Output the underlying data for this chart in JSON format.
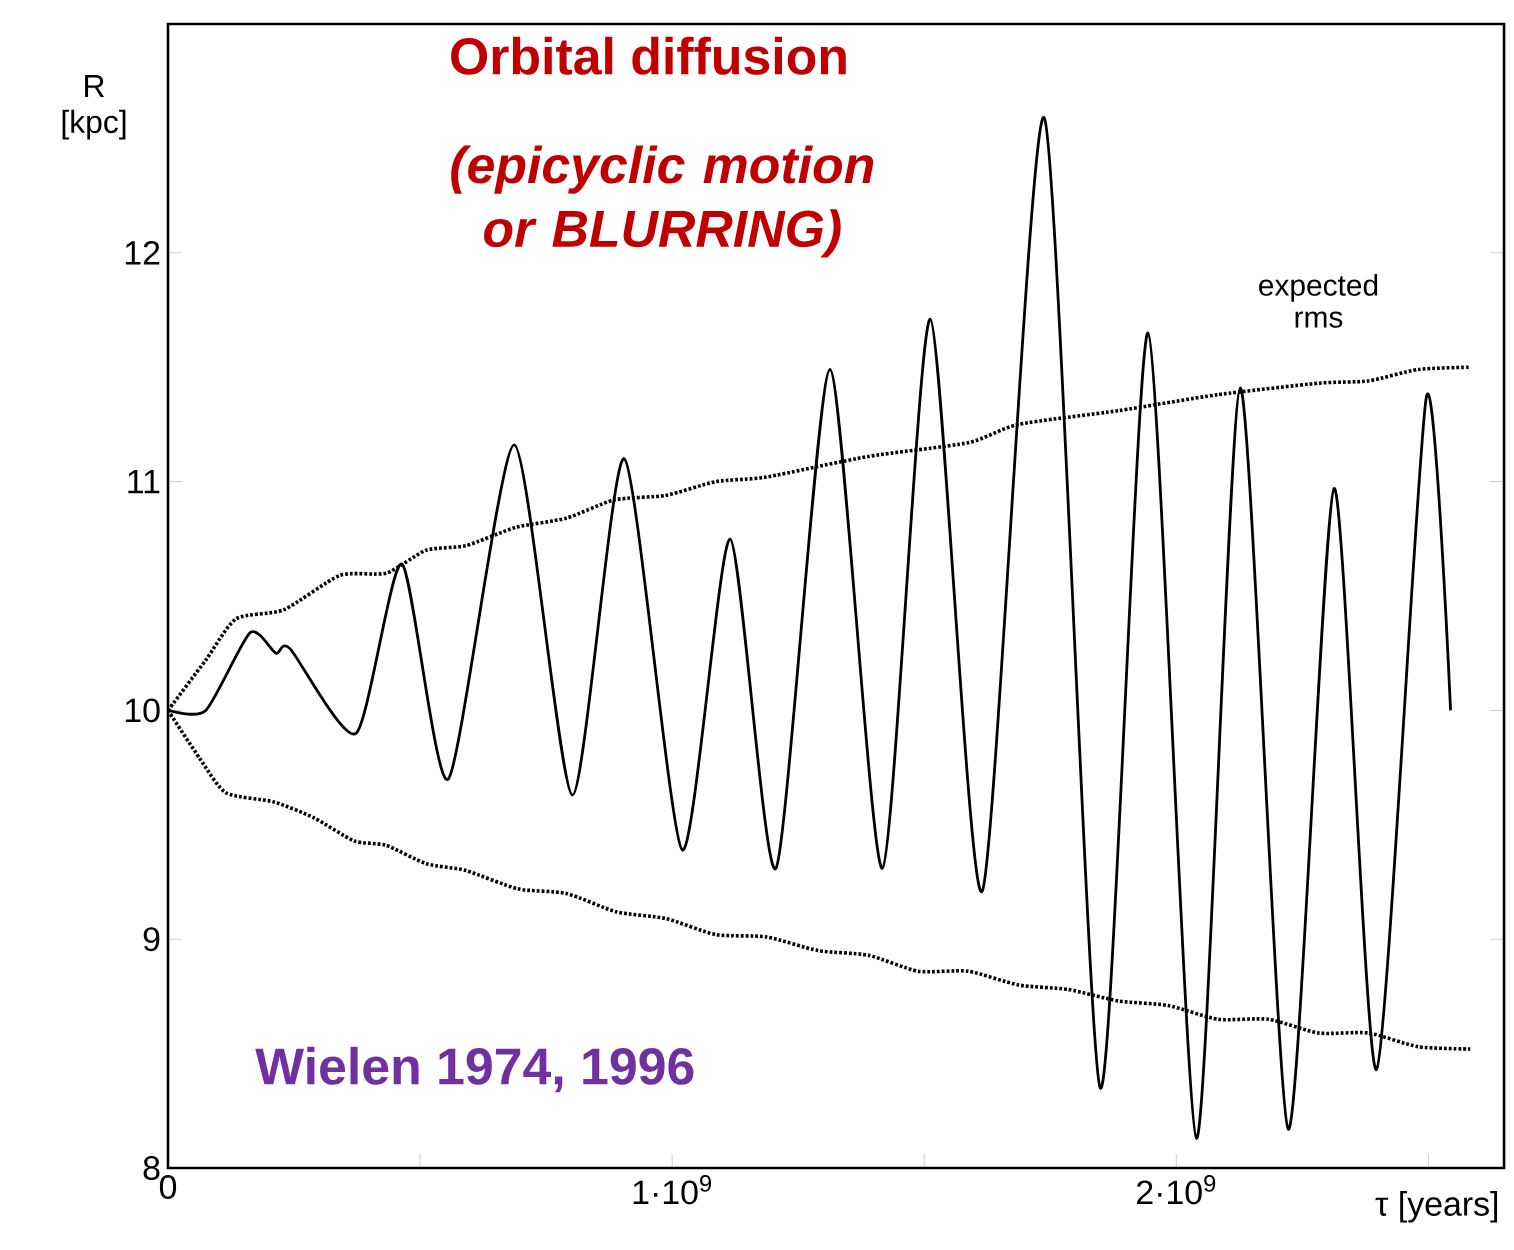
{
  "chart_data": {
    "type": "line",
    "title": "Orbital diffusion",
    "subtitle": "(epicyclic motion or BLURRING)",
    "xlabel": "τ [years]",
    "ylabel": "R [kpc]",
    "annotations": [
      "Wielen 1974, 1996"
    ],
    "xlim": [
      0,
      2650000000.0
    ],
    "ylim": [
      8,
      13
    ],
    "xticks": [
      0,
      {
        "value": 500000000.0,
        "label": null
      },
      {
        "value": 1000000000.0,
        "label": "1·10$^{9}$"
      },
      {
        "value": 1500000000.0,
        "label": null
      },
      {
        "value": 2000000000.0,
        "label": "2·10$^{9}$"
      },
      {
        "value": 2500000000.0,
        "label": null
      }
    ],
    "yticks": [
      8,
      9,
      10,
      11,
      12
    ],
    "grid": false,
    "marker": "none",
    "series": [
      {
        "color": "#000000",
        "line_style": "solid",
        "x": [
          0,
          75000000.0,
          163000000.0,
          214000000.0,
          242000000.0,
          373000000.0,
          464000000.0,
          556000000.0,
          687000000.0,
          802000000.0,
          905000000.0,
          1020000000.0,
          1115000000.0,
          1206000000.0,
          1313000000.0,
          1417000000.0,
          1512000000.0,
          1615000000.0,
          1738000000.0,
          1849000000.0,
          1944000000.0,
          2040000000.0,
          2127000000.0,
          2222000000.0,
          2313000000.0,
          2397000000.0,
          2496000000.0,
          2544000000.0
        ],
        "values": [
          10.0,
          10.0,
          10.34,
          10.25,
          10.27,
          9.9,
          10.64,
          9.7,
          11.16,
          9.63,
          11.1,
          9.39,
          10.75,
          9.31,
          11.49,
          9.31,
          11.71,
          9.21,
          12.59,
          8.35,
          11.65,
          8.13,
          11.41,
          8.17,
          10.97,
          8.43,
          11.37,
          10.0
        ]
      },
      {
        "name": "expected rms",
        "color": "#000000",
        "line_style": "dotted",
        "x": [
          0,
          75000000.0,
          135000000.0,
          230000000.0,
          341000000.0,
          433000000.0,
          512000000.0,
          591000000.0,
          690000000.0,
          790000000.0,
          885000000.0,
          988000000.0,
          1087000000.0,
          1187000000.0,
          1389000000.0,
          1587000000.0,
          1687000000.0,
          1885000000.0,
          2083000000.0,
          2282000000.0,
          2381000000.0,
          2480000000.0,
          2583000000.0
        ],
        "values": [
          10.0,
          10.22,
          10.4,
          10.44,
          10.59,
          10.6,
          10.7,
          10.72,
          10.8,
          10.84,
          10.92,
          10.94,
          11.0,
          11.02,
          11.11,
          11.17,
          11.25,
          11.31,
          11.38,
          11.43,
          11.44,
          11.49,
          11.5
        ]
      },
      {
        "color": "#000000",
        "line_style": "dotted",
        "x": [
          0,
          63000000.0,
          115000000.0,
          210000000.0,
          290000000.0,
          369000000.0,
          433000000.0,
          512000000.0,
          591000000.0,
          694000000.0,
          790000000.0,
          889000000.0,
          988000000.0,
          1087000000.0,
          1187000000.0,
          1290000000.0,
          1389000000.0,
          1488000000.0,
          1587000000.0,
          1687000000.0,
          1786000000.0,
          1885000000.0,
          1984000000.0,
          2083000000.0,
          2183000000.0,
          2282000000.0,
          2381000000.0,
          2480000000.0,
          2583000000.0
        ],
        "values": [
          10.0,
          9.79,
          9.64,
          9.6,
          9.53,
          9.43,
          9.41,
          9.33,
          9.3,
          9.22,
          9.2,
          9.12,
          9.09,
          9.02,
          9.01,
          8.95,
          8.93,
          8.86,
          8.86,
          8.8,
          8.78,
          8.73,
          8.71,
          8.65,
          8.65,
          8.59,
          8.59,
          8.53,
          8.52
        ]
      }
    ]
  }
}
